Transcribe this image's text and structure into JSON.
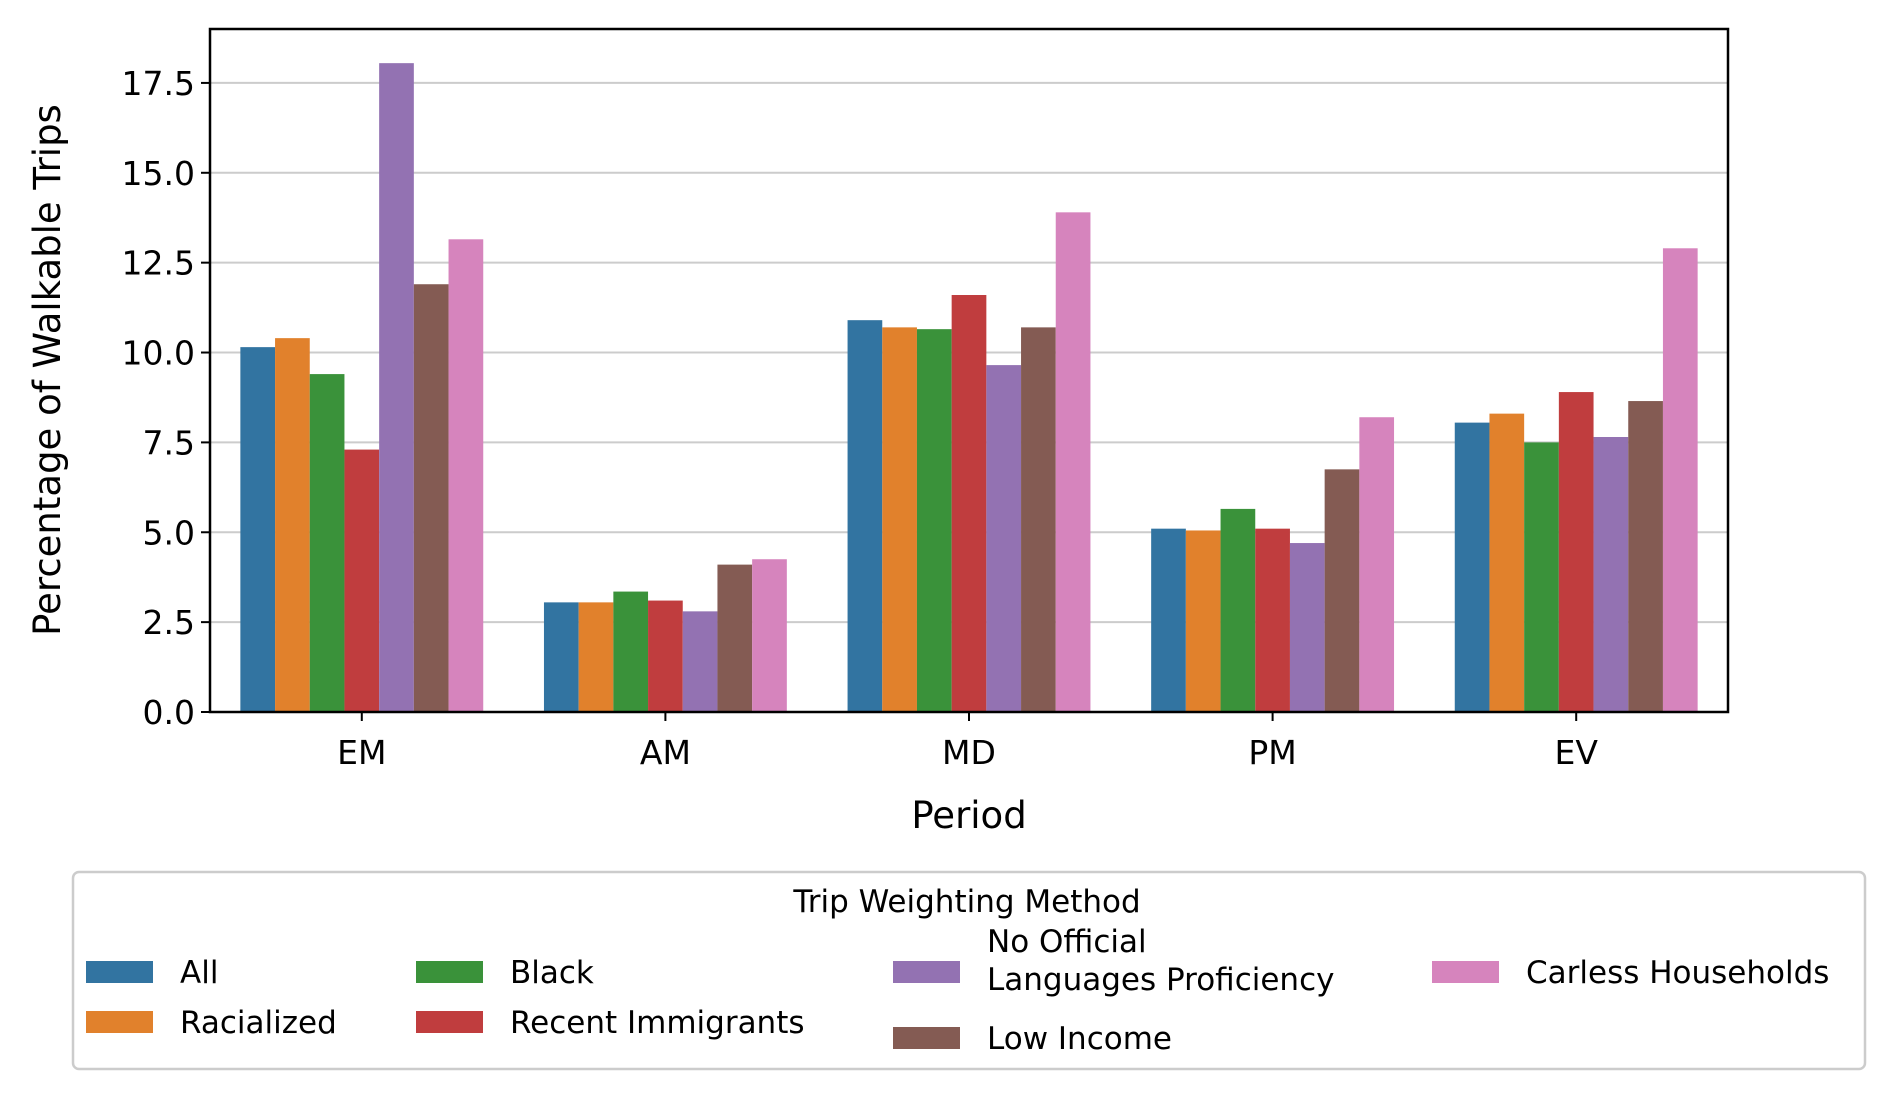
{
  "chart_data": {
    "type": "bar",
    "xlabel": "Period",
    "ylabel": "Percentage of Walkable Trips",
    "categories": [
      "EM",
      "AM",
      "MD",
      "PM",
      "EV"
    ],
    "ylim": [
      0,
      19
    ],
    "yticks": [
      "0.0",
      "2.5",
      "5.0",
      "7.5",
      "10.0",
      "12.5",
      "15.0",
      "17.5"
    ],
    "grid": "horizontal",
    "legend": {
      "title": "Trip Weighting Method",
      "placement": "below"
    },
    "series": [
      {
        "name": "All",
        "color": "#3274a1",
        "values": [
          10.15,
          3.05,
          10.9,
          5.1,
          8.05
        ]
      },
      {
        "name": "Racialized",
        "color": "#e1812c",
        "values": [
          10.4,
          3.05,
          10.7,
          5.05,
          8.3
        ]
      },
      {
        "name": "Black",
        "color": "#3a923a",
        "values": [
          9.4,
          3.35,
          10.65,
          5.65,
          7.5
        ]
      },
      {
        "name": "Recent Immigrants",
        "color": "#c03d3e",
        "values": [
          7.3,
          3.1,
          11.6,
          5.1,
          8.9
        ]
      },
      {
        "name": "No Official Languages Proficiency",
        "name_lines": [
          "No Official",
          "Languages Proficiency"
        ],
        "color": "#9372b2",
        "values": [
          18.05,
          2.8,
          9.65,
          4.7,
          7.65
        ]
      },
      {
        "name": "Low Income",
        "color": "#845b53",
        "values": [
          11.9,
          4.1,
          10.7,
          6.75,
          8.65
        ]
      },
      {
        "name": "Carless Households",
        "color": "#d684bd",
        "values": [
          13.15,
          4.25,
          13.9,
          8.2,
          12.9
        ]
      }
    ]
  }
}
